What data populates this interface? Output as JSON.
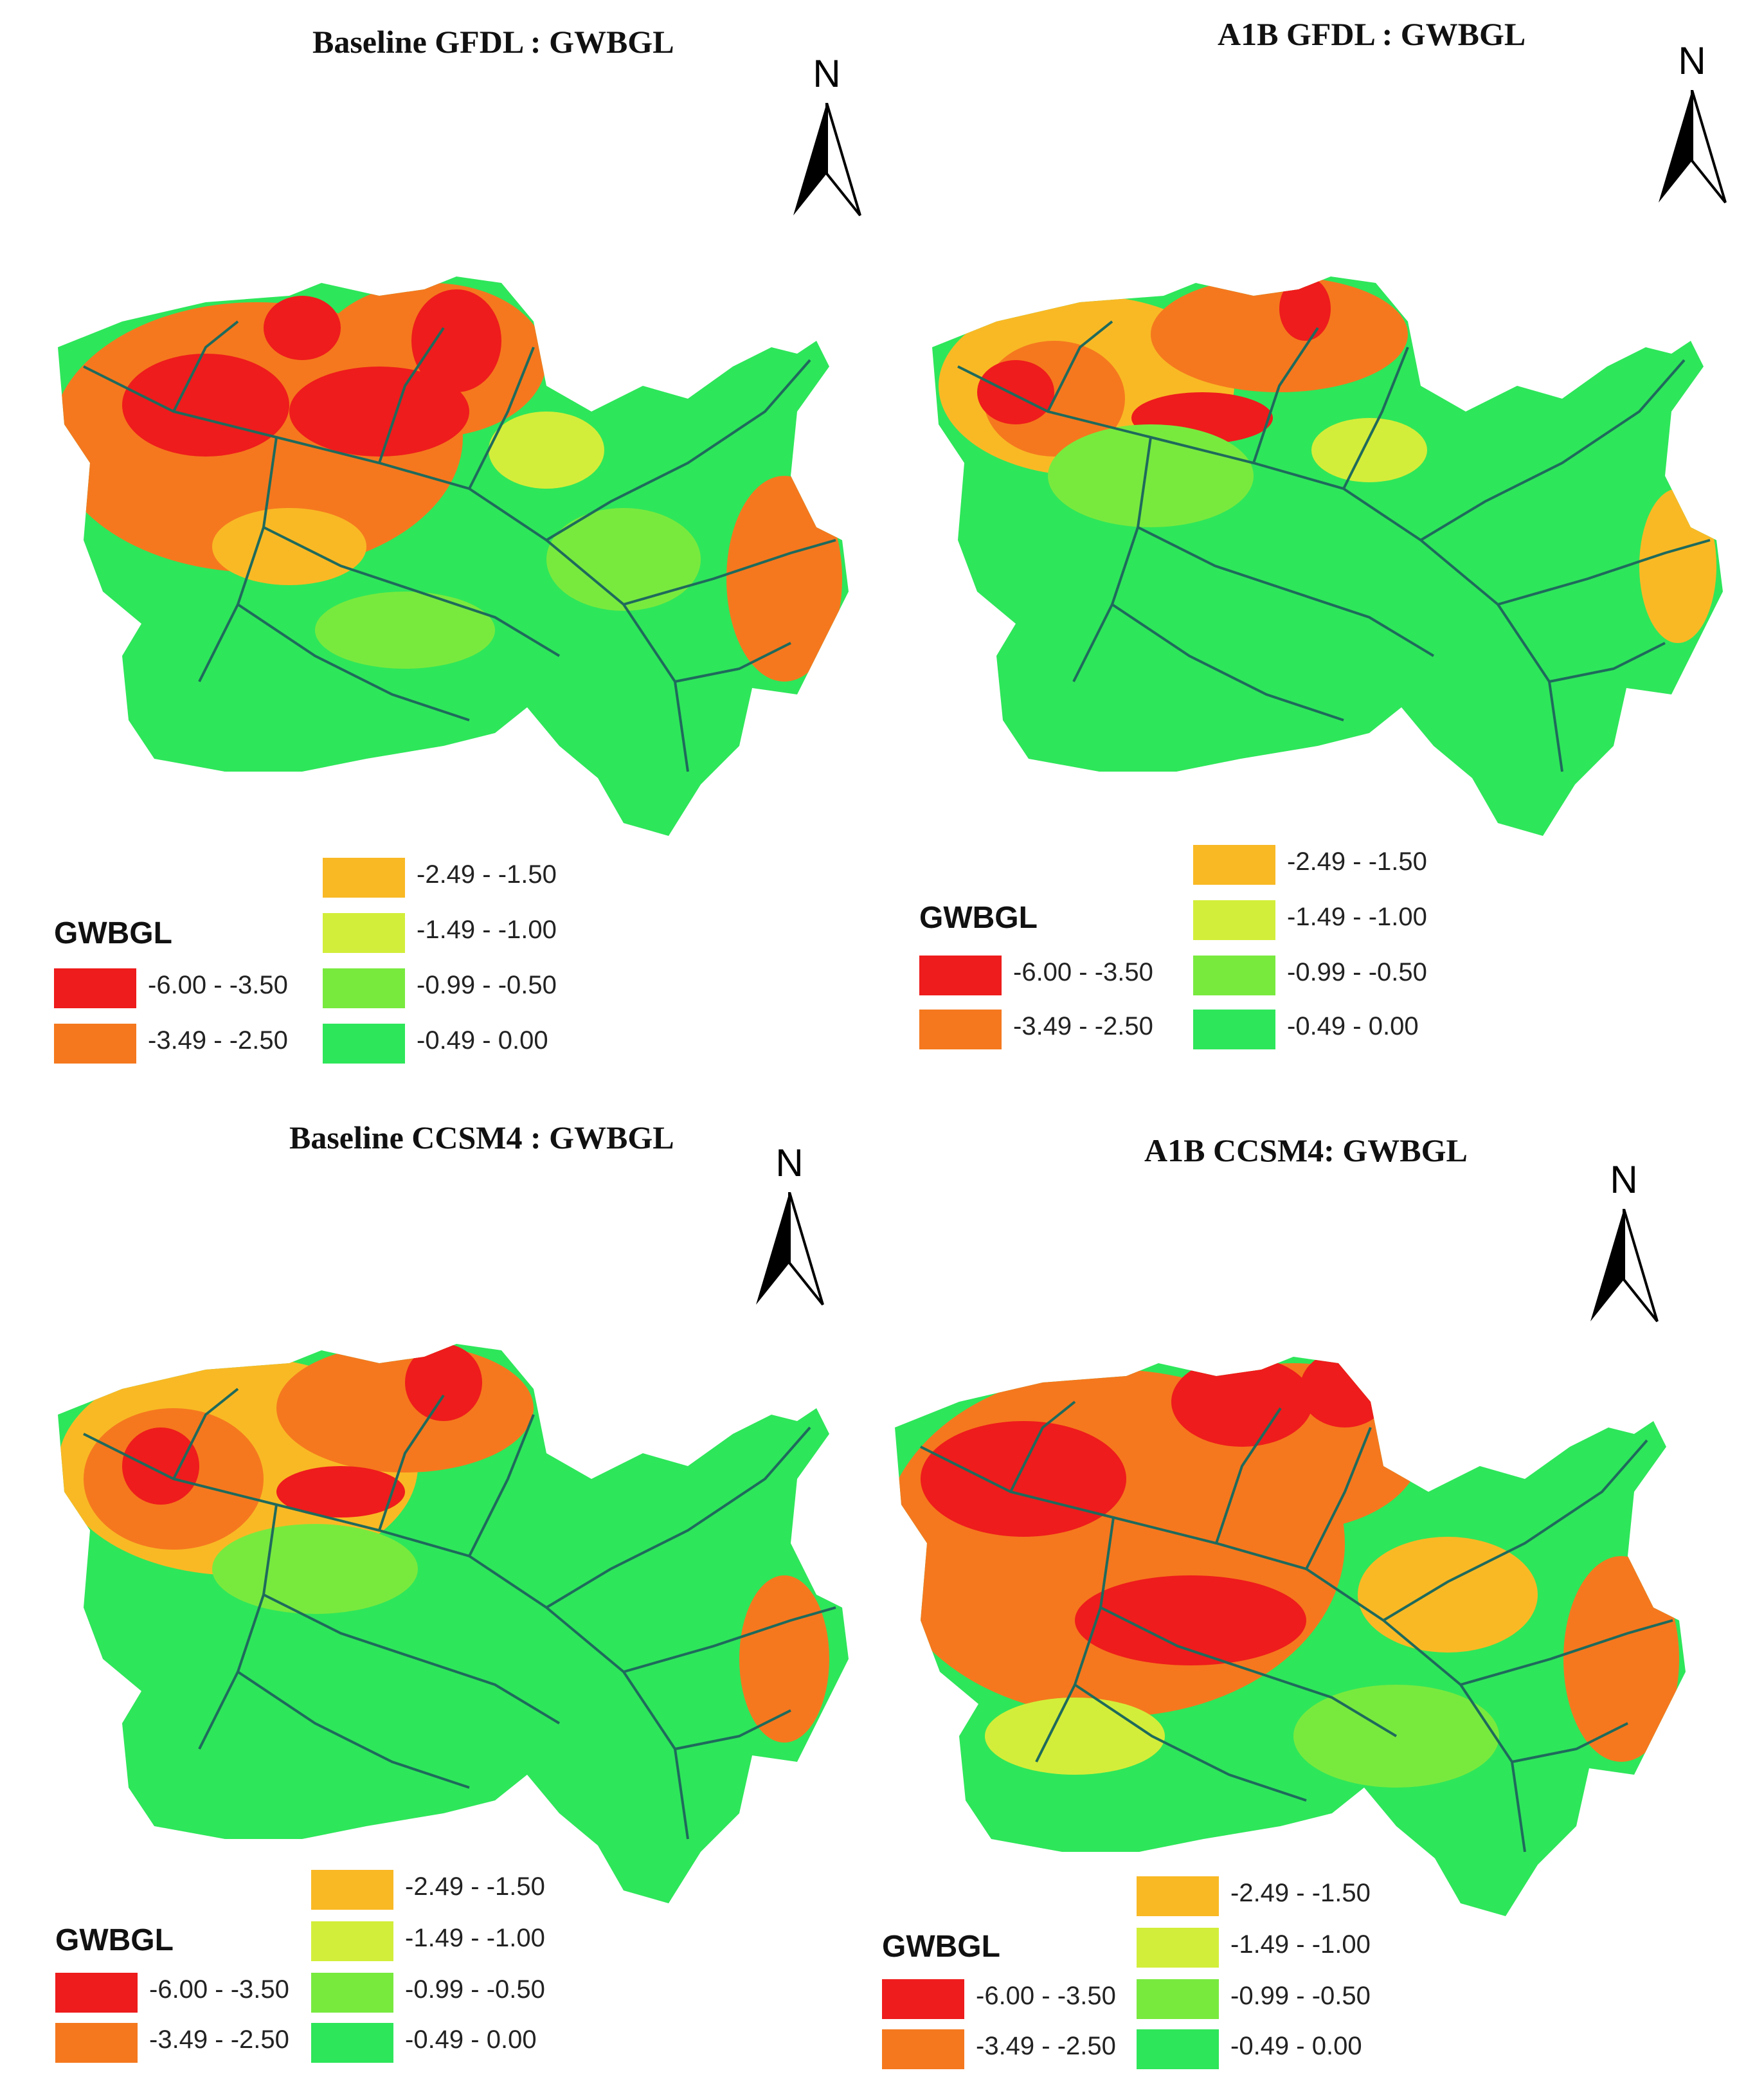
{
  "panels": [
    {
      "title": "Baseline  GFDL : GWBGL",
      "north_label": "N",
      "legend_title": "GWBGL",
      "legend": [
        {
          "label": "-6.00 - -3.50",
          "color": "#ee1c1c"
        },
        {
          "label": "-3.49 - -2.50",
          "color": "#f5781e"
        },
        {
          "label": "-2.49 - -1.50",
          "color": "#f9b925"
        },
        {
          "label": "-1.49 - -1.00",
          "color": "#d3ee3a"
        },
        {
          "label": "-0.99 - -0.50",
          "color": "#78ea3e"
        },
        {
          "label": "-0.49 - 0.00",
          "color": "#2ee65a"
        }
      ]
    },
    {
      "title": "A1B GFDL : GWBGL",
      "north_label": "N",
      "legend_title": "GWBGL",
      "legend": [
        {
          "label": "-6.00 - -3.50",
          "color": "#ee1c1c"
        },
        {
          "label": "-3.49 - -2.50",
          "color": "#f5781e"
        },
        {
          "label": "-2.49 - -1.50",
          "color": "#f9b925"
        },
        {
          "label": "-1.49 - -1.00",
          "color": "#d3ee3a"
        },
        {
          "label": "-0.99 - -0.50",
          "color": "#78ea3e"
        },
        {
          "label": "-0.49 - 0.00",
          "color": "#2ee65a"
        }
      ]
    },
    {
      "title": "Baseline  CCSM4 : GWBGL",
      "north_label": "N",
      "legend_title": "GWBGL",
      "legend": [
        {
          "label": "-6.00 - -3.50",
          "color": "#ee1c1c"
        },
        {
          "label": "-3.49 - -2.50",
          "color": "#f5781e"
        },
        {
          "label": "-2.49 - -1.50",
          "color": "#f9b925"
        },
        {
          "label": "-1.49 - -1.00",
          "color": "#d3ee3a"
        },
        {
          "label": "-0.99 - -0.50",
          "color": "#78ea3e"
        },
        {
          "label": "-0.49 - 0.00",
          "color": "#2ee65a"
        }
      ]
    },
    {
      "title": "A1B CCSM4: GWBGL",
      "north_label": "N",
      "legend_title": "GWBGL",
      "legend": [
        {
          "label": "-6.00 - -3.50",
          "color": "#ee1c1c"
        },
        {
          "label": "-3.49 - -2.50",
          "color": "#f5781e"
        },
        {
          "label": "-2.49 - -1.50",
          "color": "#f9b925"
        },
        {
          "label": "-1.49 - -1.00",
          "color": "#d3ee3a"
        },
        {
          "label": "-0.99 - -0.50",
          "color": "#78ea3e"
        },
        {
          "label": "-0.49 - 0.00",
          "color": "#2ee65a"
        }
      ]
    }
  ]
}
